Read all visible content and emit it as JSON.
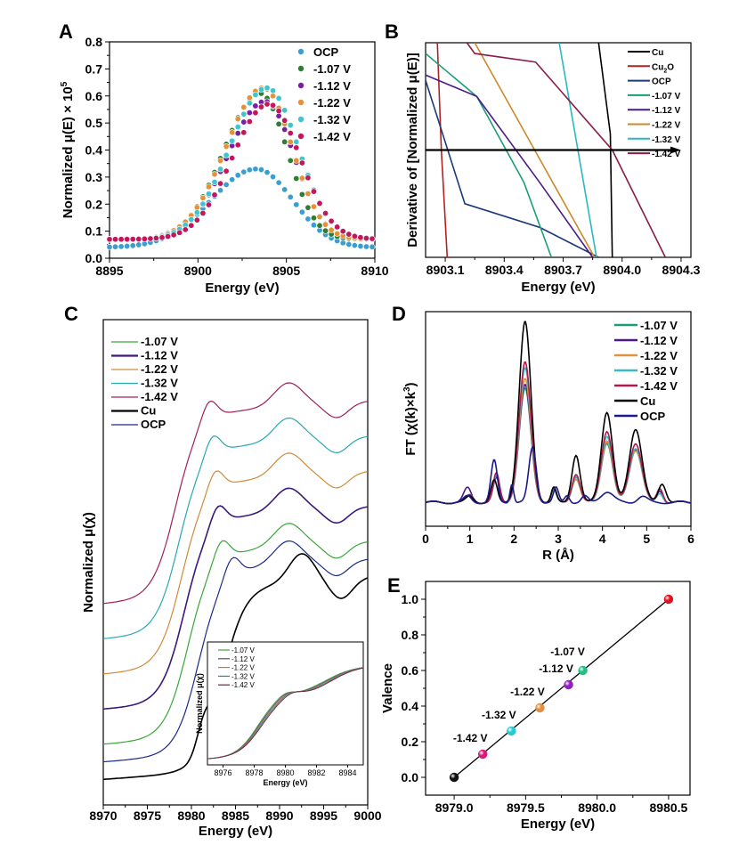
{
  "figure": {
    "panels": [
      "A",
      "B",
      "C",
      "D",
      "E"
    ]
  },
  "chart_data": [
    {
      "panel": "A",
      "type": "scatter",
      "title": "",
      "xlabel": "Energy (eV)",
      "ylabel": "Normalized μ(E) × 10^5",
      "ylabel_main": "Normalized μ(E) × 10",
      "ylabel_sup": "5",
      "xlim": [
        8895,
        8910
      ],
      "ylim": [
        0.0,
        0.8
      ],
      "xticks": [
        "8895",
        "8900",
        "8905",
        "8910"
      ],
      "xtick_values": [
        8895,
        8900,
        8905,
        8910
      ],
      "yticks": [
        "0.0",
        "0.1",
        "0.2",
        "0.3",
        "0.4",
        "0.5",
        "0.6",
        "0.7",
        "0.8"
      ],
      "ytick_values": [
        0,
        0.1,
        0.2,
        0.3,
        0.4,
        0.5,
        0.6,
        0.7,
        0.8
      ],
      "legend_position": "top-right",
      "x_start": 8895,
      "x_end": 8910,
      "x_step": 0.33,
      "series": [
        {
          "name": "OCP",
          "color": "#3a9fd0",
          "base": 0.04,
          "peak": 0.29,
          "center": 8903.3,
          "width_left": 3.6,
          "width_right": 2.9
        },
        {
          "name": "-1.07 V",
          "color": "#2e7d32",
          "base": 0.07,
          "peak": 0.54,
          "center": 8903.5,
          "width_left": 2.9,
          "width_right": 2.2
        },
        {
          "name": "-1.12 V",
          "color": "#7b1fa2",
          "base": 0.07,
          "peak": 0.51,
          "center": 8903.8,
          "width_left": 3.0,
          "width_right": 2.3
        },
        {
          "name": "-1.22 V",
          "color": "#e69138",
          "base": 0.07,
          "peak": 0.56,
          "center": 8903.7,
          "width_left": 3.0,
          "width_right": 2.3
        },
        {
          "name": "-1.32 V",
          "color": "#40c4d0",
          "base": 0.07,
          "peak": 0.56,
          "center": 8903.9,
          "width_left": 3.0,
          "width_right": 2.5
        },
        {
          "name": "-1.42 V",
          "color": "#c2185b",
          "base": 0.07,
          "peak": 0.5,
          "center": 8904.0,
          "width_left": 2.9,
          "width_right": 2.5
        }
      ]
    },
    {
      "panel": "B",
      "type": "line",
      "title": "",
      "xlabel": "Energy (eV)",
      "ylabel": "Derivative of [Normalized μ(E)]",
      "xlim": [
        8903.0,
        8904.35
      ],
      "ylim": [
        -1,
        1
      ],
      "xticks": [
        "8903.1",
        "8903.4",
        "8903.7",
        "8904.0",
        "8904.3"
      ],
      "xtick_values": [
        8903.1,
        8903.4,
        8903.7,
        8904.0,
        8904.3
      ],
      "legend_position": "top-right",
      "zero_arrow": {
        "from": 8903.0,
        "to": 8904.3,
        "y": 0
      },
      "series": [
        {
          "name": "Cu",
          "sub": "",
          "color": "#000000",
          "points": [
            [
              8903.88,
              1
            ],
            [
              8903.94,
              0.15
            ],
            [
              8903.95,
              -1
            ]
          ]
        },
        {
          "name": "Cu",
          "sub": "2",
          "suffix": "O",
          "color": "#b22222",
          "points": [
            [
              8903.06,
              1
            ],
            [
              8903.08,
              0
            ],
            [
              8903.11,
              -1
            ]
          ]
        },
        {
          "name": "OCP",
          "sub": "",
          "color": "#1a3a7a",
          "points": [
            [
              8903.0,
              0.65
            ],
            [
              8903.2,
              -0.5
            ],
            [
              8903.58,
              -0.72
            ],
            [
              8903.88,
              -1
            ]
          ]
        },
        {
          "name": "-1.07 V",
          "sub": "",
          "color": "#1a9e77",
          "points": [
            [
              8903.0,
              0.9
            ],
            [
              8903.26,
              0.5
            ],
            [
              8903.5,
              -0.3
            ],
            [
              8903.62,
              -0.9
            ],
            [
              8903.64,
              -1
            ]
          ]
        },
        {
          "name": "-1.12 V",
          "sub": "",
          "color": "#4a1a8a",
          "points": [
            [
              8903.0,
              0.7
            ],
            [
              8903.26,
              0.5
            ],
            [
              8903.58,
              -0.3
            ],
            [
              8903.85,
              -1
            ]
          ]
        },
        {
          "name": "-1.22 V",
          "sub": "",
          "color": "#cc8a2a",
          "points": [
            [
              8903.25,
              1
            ],
            [
              8903.86,
              -1
            ]
          ]
        },
        {
          "name": "-1.32 V",
          "sub": "",
          "color": "#2ab8c0",
          "points": [
            [
              8903.68,
              1
            ],
            [
              8903.87,
              -1
            ]
          ]
        },
        {
          "name": "-1.42 V",
          "sub": "",
          "color": "#8b1a4a",
          "points": [
            [
              8903.21,
              1
            ],
            [
              8903.25,
              0.9
            ],
            [
              8903.56,
              0.82
            ],
            [
              8903.95,
              0
            ],
            [
              8904.22,
              -1
            ]
          ]
        }
      ]
    },
    {
      "panel": "C",
      "type": "line",
      "title": "",
      "xlabel": "Energy (eV)",
      "ylabel": "Normalized μ(χ)",
      "xlim": [
        8970,
        9000
      ],
      "xticks": [
        "8970",
        "8975",
        "8980",
        "8985",
        "8990",
        "8995",
        "9000"
      ],
      "xtick_values": [
        8970,
        8975,
        8980,
        8985,
        8990,
        8995,
        9000
      ],
      "legend_position": "top-left",
      "series": [
        {
          "name": "-1.07 V",
          "color": "#3aa63a",
          "offset": 1.0,
          "edge": 8979.6,
          "width": "thin"
        },
        {
          "name": "-1.12 V",
          "color": "#3a1a7a",
          "offset": 2.0,
          "edge": 8979.2,
          "width": "thick"
        },
        {
          "name": "-1.22 V",
          "color": "#d08a3a",
          "offset": 3.0,
          "edge": 8978.9,
          "width": "thin"
        },
        {
          "name": "-1.32 V",
          "color": "#2aa8b0",
          "offset": 4.0,
          "edge": 8978.6,
          "width": "thin"
        },
        {
          "name": "-1.42 V",
          "color": "#a0205a",
          "offset": 5.0,
          "edge": 8978.2,
          "width": "thin"
        },
        {
          "name": "Cu",
          "color": "#000000",
          "offset": 0.0,
          "edge": 8983.5,
          "width": "thick"
        },
        {
          "name": "OCP",
          "color": "#1a2a8a",
          "offset": 0.5,
          "edge": 8980.8,
          "width": "thin"
        }
      ],
      "inset": {
        "xlabel": "Energy (eV)",
        "ylabel": "Normalized μ(χ)",
        "xlim": [
          8975,
          8985
        ],
        "xticks": [
          "8976",
          "8978",
          "8980",
          "8982",
          "8984"
        ],
        "xtick_values": [
          8976,
          8978,
          8980,
          8982,
          8984
        ],
        "series": [
          {
            "name": "-1.07 V",
            "color": "#3aa63a",
            "shift": 0.25
          },
          {
            "name": "-1.12 V",
            "color": "#5a4a7a",
            "shift": 0.12
          },
          {
            "name": "-1.22 V",
            "color": "#c07a3a",
            "shift": 0.0
          },
          {
            "name": "-1.32 V",
            "color": "#2a8a9a",
            "shift": -0.12
          },
          {
            "name": "-1.42 V",
            "color": "#7a1a3a",
            "shift": -0.25
          }
        ]
      }
    },
    {
      "panel": "D",
      "type": "line",
      "title": "",
      "xlabel": "R (Å)",
      "ylabel": "FT (χ(k)×k³)",
      "ylabel_main": "FT (χ(k)×k",
      "ylabel_sup": "3",
      "ylabel_end": ")",
      "xlim": [
        0,
        6
      ],
      "ylim": [
        -0.2,
        1.6
      ],
      "xticks": [
        "0",
        "1",
        "2",
        "3",
        "4",
        "5",
        "6"
      ],
      "xtick_values": [
        0,
        1,
        2,
        3,
        4,
        5,
        6
      ],
      "legend_position": "top-right",
      "series": [
        {
          "name": "-1.07 V",
          "color": "#1a9e77",
          "peaks": [
            [
              1.0,
              0.05,
              0.12
            ],
            [
              1.6,
              0.22,
              0.1
            ],
            [
              2.25,
              0.95,
              0.19
            ],
            [
              2.9,
              0.1,
              0.08
            ],
            [
              3.4,
              0.22,
              0.13
            ],
            [
              4.1,
              0.5,
              0.18
            ],
            [
              4.75,
              0.45,
              0.2
            ],
            [
              5.3,
              0.08,
              0.1
            ]
          ]
        },
        {
          "name": "-1.12 V",
          "color": "#4a1a8a",
          "peaks": [
            [
              0.95,
              0.12,
              0.12
            ],
            [
              1.6,
              0.2,
              0.1
            ],
            [
              2.25,
              0.98,
              0.19
            ],
            [
              2.9,
              0.12,
              0.08
            ],
            [
              3.4,
              0.22,
              0.13
            ],
            [
              4.1,
              0.52,
              0.18
            ],
            [
              4.75,
              0.45,
              0.2
            ],
            [
              5.3,
              0.1,
              0.1
            ]
          ]
        },
        {
          "name": "-1.22 V",
          "color": "#e0943a",
          "peaks": [
            [
              1.0,
              0.06,
              0.12
            ],
            [
              1.6,
              0.22,
              0.1
            ],
            [
              2.25,
              1.03,
              0.19
            ],
            [
              2.9,
              0.1,
              0.08
            ],
            [
              3.4,
              0.2,
              0.13
            ],
            [
              4.1,
              0.52,
              0.18
            ],
            [
              4.75,
              0.44,
              0.2
            ],
            [
              5.3,
              0.08,
              0.1
            ]
          ]
        },
        {
          "name": "-1.32 V",
          "color": "#3ab8c8",
          "peaks": [
            [
              1.0,
              0.06,
              0.12
            ],
            [
              1.6,
              0.22,
              0.1
            ],
            [
              2.25,
              1.12,
              0.19
            ],
            [
              2.9,
              0.1,
              0.08
            ],
            [
              3.4,
              0.22,
              0.13
            ],
            [
              4.1,
              0.56,
              0.18
            ],
            [
              4.75,
              0.46,
              0.2
            ],
            [
              5.3,
              0.08,
              0.1
            ]
          ]
        },
        {
          "name": "-1.42 V",
          "color": "#b01a4a",
          "peaks": [
            [
              1.0,
              0.06,
              0.12
            ],
            [
              1.6,
              0.24,
              0.1
            ],
            [
              2.25,
              1.17,
              0.19
            ],
            [
              2.9,
              0.12,
              0.08
            ],
            [
              3.4,
              0.24,
              0.13
            ],
            [
              4.1,
              0.6,
              0.18
            ],
            [
              4.75,
              0.5,
              0.2
            ],
            [
              5.3,
              0.12,
              0.1
            ]
          ]
        },
        {
          "name": "Cu",
          "color": "#000000",
          "peaks": [
            [
              1.0,
              0.05,
              0.12
            ],
            [
              1.55,
              0.18,
              0.1
            ],
            [
              2.25,
              1.51,
              0.19
            ],
            [
              2.9,
              0.12,
              0.08
            ],
            [
              3.4,
              0.4,
              0.13
            ],
            [
              4.1,
              0.76,
              0.18
            ],
            [
              4.75,
              0.62,
              0.2
            ],
            [
              5.35,
              0.16,
              0.12
            ]
          ]
        },
        {
          "name": "OCP",
          "color": "#1a1a8a",
          "peaks": [
            [
              0.95,
              0.05,
              0.12
            ],
            [
              1.55,
              0.35,
              0.1
            ],
            [
              1.95,
              0.16,
              0.06
            ],
            [
              2.42,
              0.46,
              0.12
            ],
            [
              2.95,
              0.12,
              0.08
            ],
            [
              3.2,
              0.06,
              0.08
            ],
            [
              3.6,
              0.05,
              0.1
            ],
            [
              4.1,
              0.09,
              0.2
            ],
            [
              4.9,
              0.05,
              0.15
            ]
          ]
        }
      ]
    },
    {
      "panel": "E",
      "type": "scatter",
      "title": "",
      "xlabel": "Energy (eV)",
      "ylabel": "Valence",
      "xlim": [
        8978.8,
        8980.65
      ],
      "ylim": [
        -0.1,
        1.1
      ],
      "xticks": [
        "8979.0",
        "8979.5",
        "8980.0",
        "8980.5"
      ],
      "xtick_values": [
        8979.0,
        8979.5,
        8980.0,
        8980.5
      ],
      "yticks": [
        "0.0",
        "0.2",
        "0.4",
        "0.6",
        "0.8",
        "1.0"
      ],
      "ytick_values": [
        0,
        0.2,
        0.4,
        0.6,
        0.8,
        1.0
      ],
      "fit_line": {
        "from": [
          8979.0,
          0.0
        ],
        "to": [
          8980.5,
          1.0
        ]
      },
      "points": [
        {
          "label": "",
          "x": 8979.0,
          "y": 0.0,
          "color": "#111111"
        },
        {
          "label": "-1.42 V",
          "x": 8979.2,
          "y": 0.13,
          "color": "#d81b7a"
        },
        {
          "label": "-1.32 V",
          "x": 8979.4,
          "y": 0.26,
          "color": "#2ac8d0"
        },
        {
          "label": "-1.22 V",
          "x": 8979.6,
          "y": 0.39,
          "color": "#e09040"
        },
        {
          "label": "-1.12 V",
          "x": 8979.8,
          "y": 0.52,
          "color": "#9020c0"
        },
        {
          "label": "-1.07 V",
          "x": 8979.9,
          "y": 0.6,
          "color": "#20c080"
        },
        {
          "label": "",
          "x": 8980.5,
          "y": 1.0,
          "color": "#e01020"
        }
      ]
    }
  ]
}
